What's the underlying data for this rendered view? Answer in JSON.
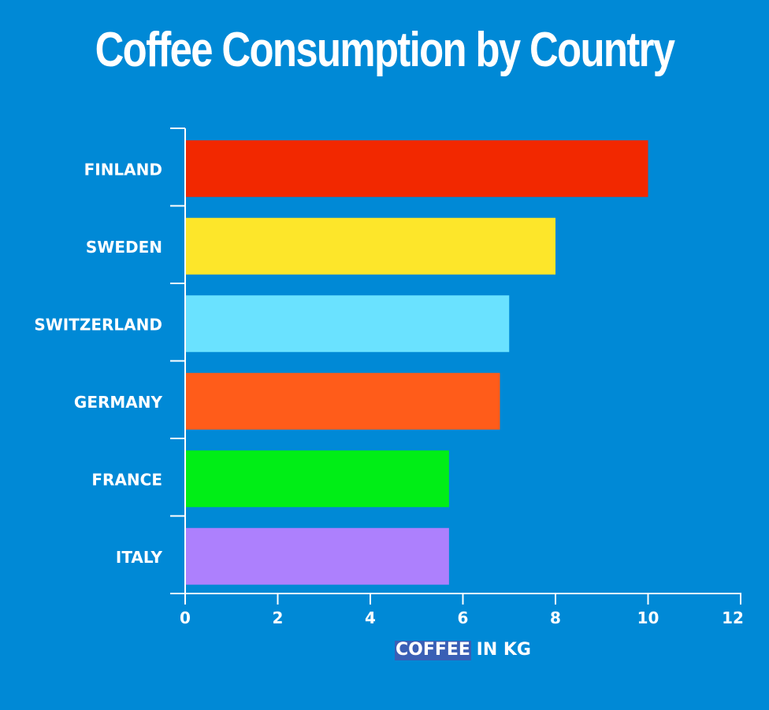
{
  "chart_data": {
    "type": "bar",
    "orientation": "horizontal",
    "title": "Coffee Consumption by Country",
    "xlabel": "COFFEE IN KG",
    "xlabel_highlight": "COFFEE",
    "xlabel_rest": " IN KG",
    "ylabel": "",
    "categories": [
      "FINLAND",
      "SWEDEN",
      "SWITZERLAND",
      "GERMANY",
      "FRANCE",
      "ITALY"
    ],
    "values": [
      10.0,
      8.0,
      7.0,
      6.8,
      5.7,
      5.7
    ],
    "colors": [
      "#f22800",
      "#fde62a",
      "#6ae2ff",
      "#ff5c1a",
      "#00ee16",
      "#ad80fd"
    ],
    "xlim": [
      0,
      12
    ],
    "xticks": [
      "0",
      "2",
      "4",
      "6",
      "8",
      "10",
      "12"
    ],
    "grid": false,
    "legend": "none"
  },
  "style": {
    "background": "#0089d6",
    "axis_color": "#ffffff",
    "highlight_color": "#3a5fb5"
  }
}
